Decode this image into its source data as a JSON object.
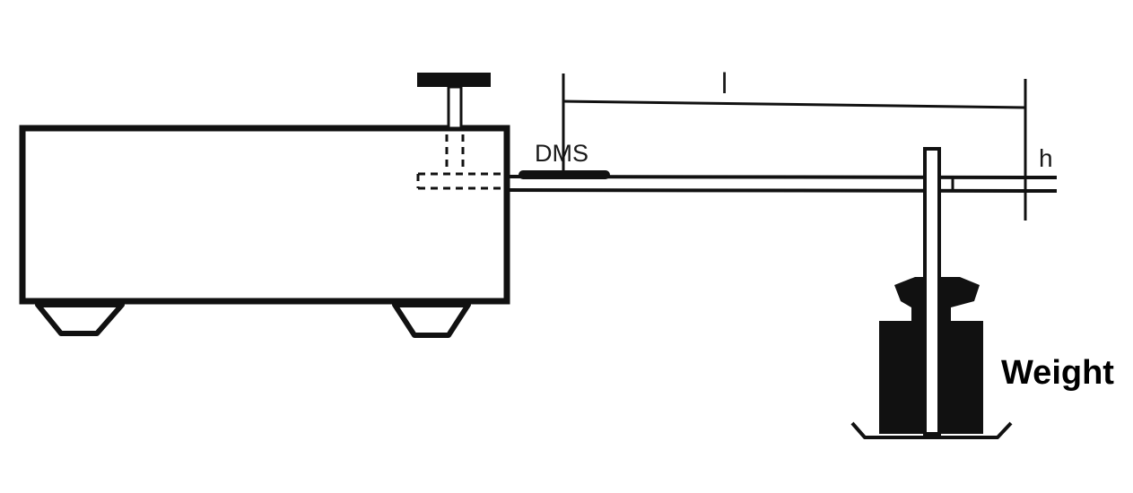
{
  "diagram": {
    "labels": {
      "strain_gauge": "DMS",
      "length": "l",
      "height": "h",
      "weight": "Weight"
    },
    "colors": {
      "ink": "#111111",
      "background": "#ffffff"
    }
  }
}
